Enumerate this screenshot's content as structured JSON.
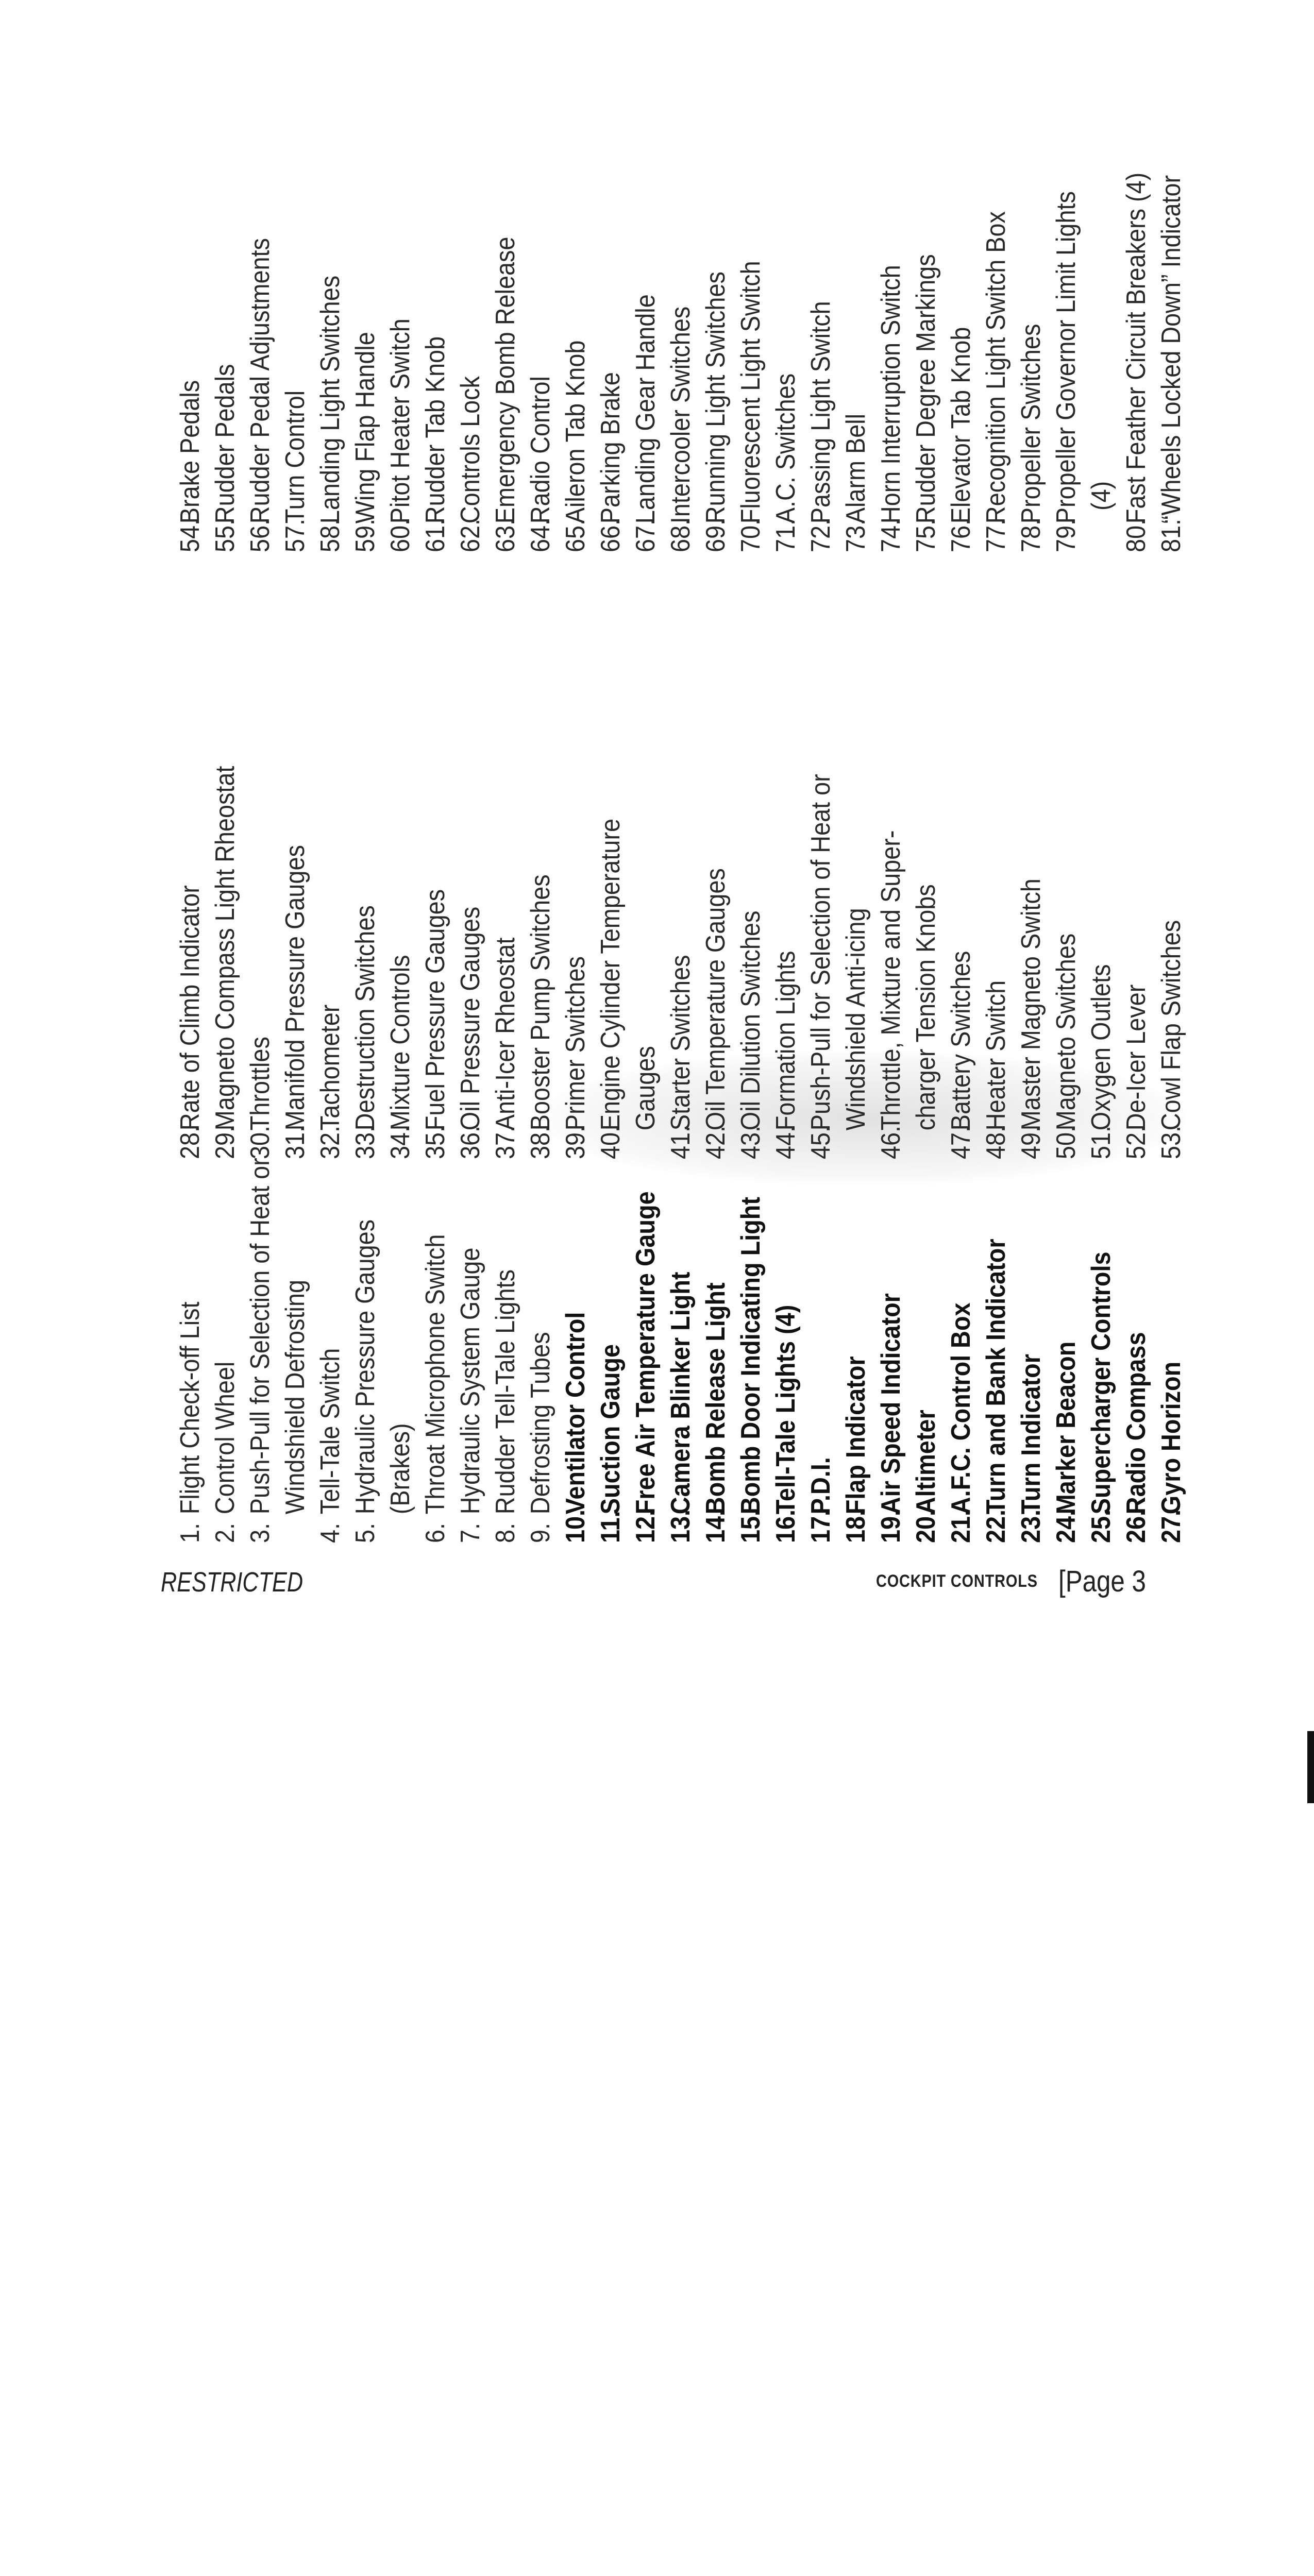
{
  "columns": [
    [
      {
        "num": "1.",
        "lines": [
          "Flight Check-off List"
        ]
      },
      {
        "num": "2.",
        "lines": [
          "Control Wheel"
        ]
      },
      {
        "num": "3.",
        "lines": [
          "Push-Pull for Selection of Heat or",
          "Windshield Defrosting"
        ]
      },
      {
        "num": "4.",
        "lines": [
          "Tell-Tale Switch"
        ]
      },
      {
        "num": "5.",
        "lines": [
          "Hydraulic Pressure Gauges",
          "(Brakes)"
        ]
      },
      {
        "num": "6.",
        "lines": [
          "Throat Microphone Switch"
        ]
      },
      {
        "num": "7.",
        "lines": [
          "Hydraulic System Gauge"
        ]
      },
      {
        "num": "8.",
        "lines": [
          "Rudder Tell-Tale Lights"
        ]
      },
      {
        "num": "9.",
        "lines": [
          "Defrosting Tubes"
        ]
      },
      {
        "num": "10.",
        "lines": [
          "Ventilator Control"
        ]
      },
      {
        "num": "11.",
        "lines": [
          "Suction Gauge"
        ]
      },
      {
        "num": "12.",
        "lines": [
          "Free Air Temperature Gauge"
        ]
      },
      {
        "num": "13.",
        "lines": [
          "Camera Blinker Light"
        ]
      },
      {
        "num": "14.",
        "lines": [
          "Bomb Release Light"
        ]
      },
      {
        "num": "15.",
        "lines": [
          "Bomb Door Indicating Light"
        ]
      },
      {
        "num": "16.",
        "lines": [
          "Tell-Tale Lights (4)"
        ]
      },
      {
        "num": "17.",
        "lines": [
          "P.D.I."
        ]
      },
      {
        "num": "18.",
        "lines": [
          "Flap Indicator"
        ]
      },
      {
        "num": "19.",
        "lines": [
          "Air Speed Indicator"
        ]
      },
      {
        "num": "20.",
        "lines": [
          "Altimeter"
        ]
      },
      {
        "num": "21.",
        "lines": [
          "A.F.C. Control Box"
        ]
      },
      {
        "num": "22.",
        "lines": [
          "Turn and Bank Indicator"
        ]
      },
      {
        "num": "23.",
        "lines": [
          "Turn Indicator"
        ]
      },
      {
        "num": "24.",
        "lines": [
          "Marker Beacon"
        ]
      },
      {
        "num": "25.",
        "lines": [
          "Supercharger Controls"
        ]
      },
      {
        "num": "26.",
        "lines": [
          "Radio Compass"
        ]
      },
      {
        "num": "27.",
        "lines": [
          "Gyro Horizon"
        ]
      }
    ],
    [
      {
        "num": "28.",
        "lines": [
          "Rate of Climb Indicator"
        ]
      },
      {
        "num": "29.",
        "lines": [
          "Magneto Compass Light Rheostat"
        ]
      },
      {
        "num": "30.",
        "lines": [
          "Throttles"
        ]
      },
      {
        "num": "31.",
        "lines": [
          "Manifold Pressure Gauges"
        ]
      },
      {
        "num": "32.",
        "lines": [
          "Tachometer"
        ]
      },
      {
        "num": "33.",
        "lines": [
          "Destruction Switches"
        ]
      },
      {
        "num": "34.",
        "lines": [
          "Mixture Controls"
        ]
      },
      {
        "num": "35.",
        "lines": [
          "Fuel Pressure Gauges"
        ]
      },
      {
        "num": "36.",
        "lines": [
          "Oil Pressure Gauges"
        ]
      },
      {
        "num": "37.",
        "lines": [
          "Anti-Icer Rheostat"
        ]
      },
      {
        "num": "38.",
        "lines": [
          "Booster Pump Switches"
        ]
      },
      {
        "num": "39.",
        "lines": [
          "Primer Switches"
        ]
      },
      {
        "num": "40.",
        "lines": [
          "Engine Cylinder Temperature",
          "Gauges"
        ]
      },
      {
        "num": "41.",
        "lines": [
          "Starter Switches"
        ]
      },
      {
        "num": "42.",
        "lines": [
          "Oil Temperature Gauges"
        ]
      },
      {
        "num": "43.",
        "lines": [
          "Oil Dilution Switches"
        ]
      },
      {
        "num": "44.",
        "lines": [
          "Formation Lights"
        ]
      },
      {
        "num": "45.",
        "lines": [
          "Push-Pull for Selection of Heat or",
          "Windshield Anti-icing"
        ]
      },
      {
        "num": "46.",
        "lines": [
          "Throttle, Mixture and Super-",
          "charger Tension Knobs"
        ]
      },
      {
        "num": "47.",
        "lines": [
          "Battery Switches"
        ]
      },
      {
        "num": "48.",
        "lines": [
          "Heater Switch"
        ]
      },
      {
        "num": "49.",
        "lines": [
          "Master Magneto Switch"
        ]
      },
      {
        "num": "50.",
        "lines": [
          "Magneto Switches"
        ]
      },
      {
        "num": "51.",
        "lines": [
          "Oxygen Outlets"
        ]
      },
      {
        "num": "52.",
        "lines": [
          "De-Icer Lever"
        ]
      },
      {
        "num": "53.",
        "lines": [
          "Cowl Flap Switches"
        ]
      }
    ],
    [
      {
        "num": "54.",
        "lines": [
          "Brake Pedals"
        ]
      },
      {
        "num": "55.",
        "lines": [
          "Rudder Pedals"
        ]
      },
      {
        "num": "56.",
        "lines": [
          "Rudder Pedal Adjustments"
        ]
      },
      {
        "num": "57.",
        "lines": [
          "Turn Control"
        ]
      },
      {
        "num": "58.",
        "lines": [
          "Landing Light Switches"
        ]
      },
      {
        "num": "59.",
        "lines": [
          "Wing Flap Handle"
        ]
      },
      {
        "num": "60.",
        "lines": [
          "Pitot Heater Switch"
        ]
      },
      {
        "num": "61.",
        "lines": [
          "Rudder Tab Knob"
        ]
      },
      {
        "num": "62.",
        "lines": [
          "Controls Lock"
        ]
      },
      {
        "num": "63.",
        "lines": [
          "Emergency Bomb Release"
        ]
      },
      {
        "num": "64.",
        "lines": [
          "Radio Control"
        ]
      },
      {
        "num": "65.",
        "lines": [
          "Aileron Tab Knob"
        ]
      },
      {
        "num": "66.",
        "lines": [
          "Parking Brake"
        ]
      },
      {
        "num": "67.",
        "lines": [
          "Landing Gear Handle"
        ]
      },
      {
        "num": "68.",
        "lines": [
          "Intercooler Switches"
        ]
      },
      {
        "num": "69.",
        "lines": [
          "Running Light Switches"
        ]
      },
      {
        "num": "70.",
        "lines": [
          "Fluorescent Light Switch"
        ]
      },
      {
        "num": "71.",
        "lines": [
          "A.C. Switches"
        ]
      },
      {
        "num": "72.",
        "lines": [
          "Passing Light Switch"
        ]
      },
      {
        "num": "73.",
        "lines": [
          "Alarm Bell"
        ]
      },
      {
        "num": "74.",
        "lines": [
          "Horn Interruption Switch"
        ]
      },
      {
        "num": "75.",
        "lines": [
          "Rudder Degree Markings"
        ]
      },
      {
        "num": "76.",
        "lines": [
          "Elevator Tab Knob"
        ]
      },
      {
        "num": "77.",
        "lines": [
          "Recognition Light Switch Box"
        ]
      },
      {
        "num": "78.",
        "lines": [
          "Propeller Switches"
        ]
      },
      {
        "num": "79.",
        "lines": [
          "Propeller Governor Limit Lights",
          "(4)"
        ]
      },
      {
        "num": "80.",
        "lines": [
          "Fast Feather Circuit Breakers (4)"
        ]
      },
      {
        "num": "81.",
        "lines": [
          "“Wheels Locked Down” Indicator"
        ]
      }
    ]
  ],
  "footer": {
    "classification": "RESTRICTED",
    "section": "COCKPIT CONTROLS",
    "page": "[Page 3"
  }
}
